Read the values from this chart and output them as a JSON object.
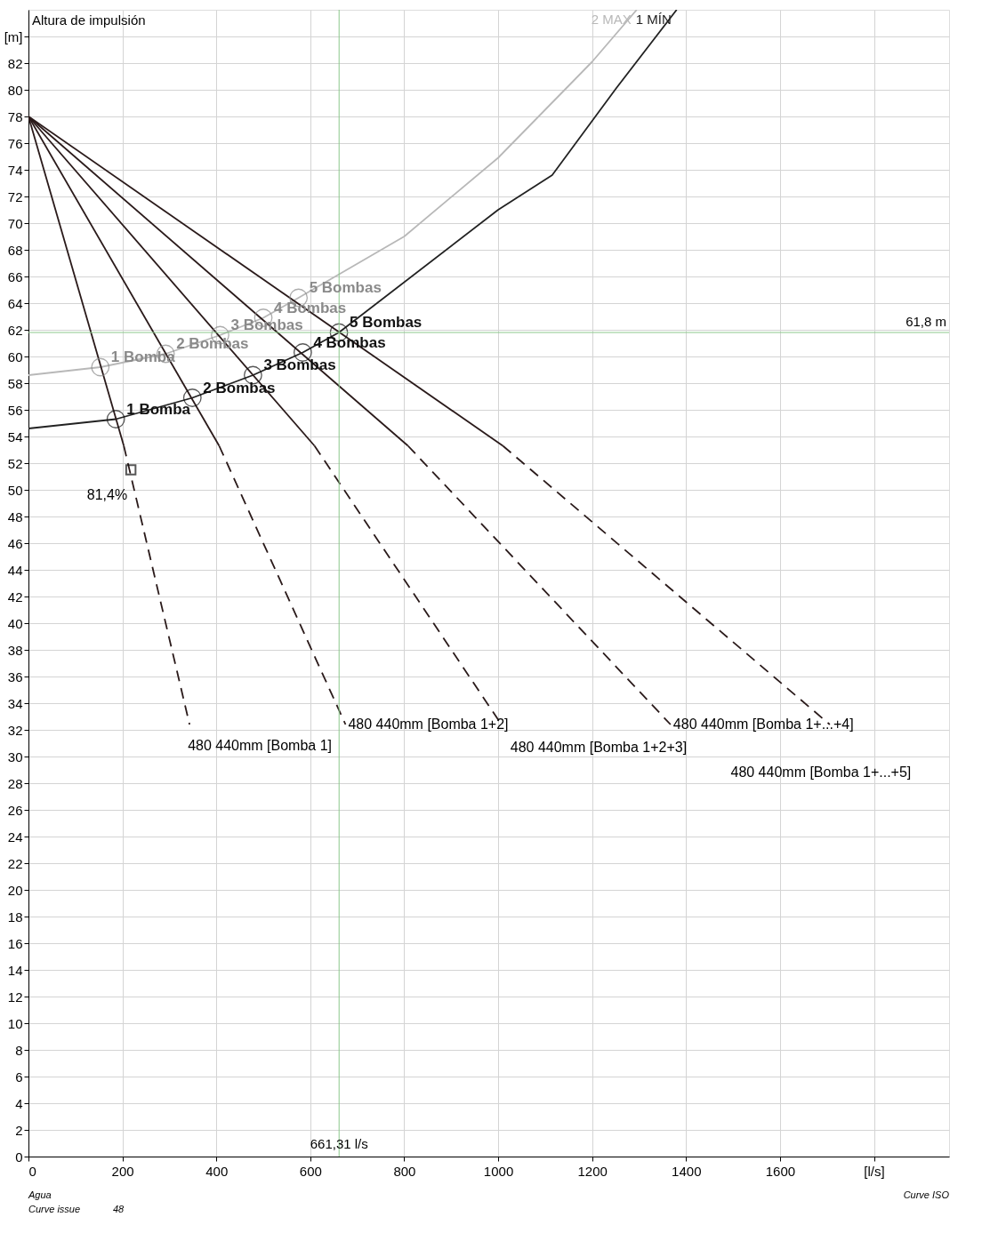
{
  "chart_data": {
    "type": "line",
    "xlim": [
      0,
      1960
    ],
    "ylim": [
      0,
      86
    ],
    "xticks": [
      0,
      200,
      400,
      600,
      800,
      1000,
      1200,
      1400,
      1600,
      {
        "value": 1800,
        "label": "[l/s]"
      }
    ],
    "yticks": [
      0,
      2,
      4,
      6,
      8,
      10,
      12,
      14,
      16,
      18,
      20,
      22,
      24,
      26,
      28,
      30,
      32,
      34,
      36,
      38,
      40,
      42,
      44,
      46,
      48,
      50,
      52,
      54,
      56,
      58,
      60,
      62,
      64,
      66,
      68,
      70,
      72,
      74,
      76,
      78,
      80,
      82,
      {
        "value": 84,
        "label": "[m]"
      }
    ],
    "grid": true,
    "series": [
      {
        "name": "2 MAX",
        "color": "#b8b8b8",
        "x": [
          0,
          153,
          292,
          408,
          500,
          575,
          800,
          1000,
          1200,
          1295
        ],
        "values": [
          58.6,
          59.2,
          60.2,
          61.6,
          62.9,
          64.4,
          69.0,
          74.9,
          82.1,
          86
        ]
      },
      {
        "name": "1 MÍN",
        "color": "#222222",
        "x": [
          0,
          186,
          349,
          478,
          584,
          661,
          1000,
          1115,
          1251,
          1380
        ],
        "values": [
          54.6,
          55.3,
          56.9,
          58.6,
          60.3,
          61.8,
          71,
          73.6,
          80.1,
          86
        ]
      },
      {
        "color": "#2a1a1a",
        "x": [
          0,
          203
        ],
        "values": [
          78,
          53.3
        ]
      },
      {
        "color": "#2a1a1a",
        "x": [
          0,
          406
        ],
        "values": [
          78,
          53.3
        ]
      },
      {
        "color": "#2a1a1a",
        "x": [
          0,
          609
        ],
        "values": [
          78,
          53.3
        ]
      },
      {
        "color": "#2a1a1a",
        "x": [
          0,
          808
        ],
        "values": [
          78,
          53.3
        ]
      },
      {
        "color": "#2a1a1a",
        "x": [
          0,
          1010
        ],
        "values": [
          78,
          53.3
        ]
      },
      {
        "color": "#2a1a1a",
        "line_style": "dashed",
        "x": [
          203,
          343
        ],
        "values": [
          53.3,
          32.4
        ]
      },
      {
        "color": "#2a1a1a",
        "line_style": "dashed",
        "x": [
          406,
          675
        ],
        "values": [
          53.3,
          32.4
        ]
      },
      {
        "color": "#2a1a1a",
        "line_style": "dashed",
        "x": [
          609,
          1007
        ],
        "values": [
          53.3,
          32.4
        ]
      },
      {
        "color": "#2a1a1a",
        "line_style": "dashed",
        "x": [
          808,
          1367
        ],
        "values": [
          53.3,
          32.4
        ]
      },
      {
        "color": "#2a1a1a",
        "line_style": "dashed",
        "x": [
          1010,
          1706
        ],
        "values": [
          53.3,
          32.4
        ]
      },
      {
        "type": "scatter",
        "marker": "circle",
        "color": "#8a8a8a",
        "x": [
          153,
          292,
          408,
          500,
          575
        ],
        "values": [
          59.2,
          60.2,
          61.6,
          62.9,
          64.4
        ]
      },
      {
        "type": "scatter",
        "marker": "circle",
        "color": "#111111",
        "x": [
          186,
          349,
          478,
          584,
          661
        ],
        "values": [
          55.3,
          56.9,
          58.6,
          60.3,
          61.8
        ]
      },
      {
        "type": "scatter",
        "marker": "square",
        "color": "#111111",
        "x": [
          218
        ],
        "values": [
          51.5
        ]
      }
    ],
    "ref_lines": [
      {
        "axis": "x",
        "value": 661.31,
        "label": "661,31 l/s",
        "color": "#8cc88c"
      },
      {
        "axis": "y",
        "value": 61.8,
        "label": "61,8 m",
        "color": "#8cc88c"
      }
    ],
    "annotations": [
      "Altura de impulsión",
      {
        "text": "81,4%",
        "x": 218,
        "y": 51.5
      },
      {
        "text": "480 440mm [Bomba 1]",
        "x": 343,
        "y": 32.4
      },
      {
        "text": "480 440mm [Bomba 1+2]",
        "x": 675,
        "y": 32.4
      },
      {
        "text": "480 440mm [Bomba 1+2+3]",
        "x": 1007,
        "y": 32.4
      },
      {
        "text": "480 440mm [Bomba 1+...+4]",
        "x": 1367,
        "y": 32.4
      },
      {
        "text": "480 440mm [Bomba 1+...+5]",
        "x": 1706,
        "y": 32.4
      },
      "Agua",
      "Curve issue",
      "48",
      "Curve ISO",
      {
        "text": "1 Bomba",
        "x": 153,
        "y": 59.2
      },
      {
        "text": "2 Bombas",
        "x": 292,
        "y": 60.2
      },
      {
        "text": "3 Bombas",
        "x": 408,
        "y": 61.6
      },
      {
        "text": "4 Bombas",
        "x": 500,
        "y": 62.9
      },
      {
        "text": "5 Bombas",
        "x": 575,
        "y": 64.4
      },
      {
        "text": "1 Bomba",
        "x": 186,
        "y": 55.3
      },
      {
        "text": "2 Bombas",
        "x": 349,
        "y": 56.9
      },
      {
        "text": "3 Bombas",
        "x": 478,
        "y": 58.6
      },
      {
        "text": "4 Bombas",
        "x": 584,
        "y": 60.3
      },
      {
        "text": "5 Bombas",
        "x": 661,
        "y": 61.8
      }
    ]
  }
}
